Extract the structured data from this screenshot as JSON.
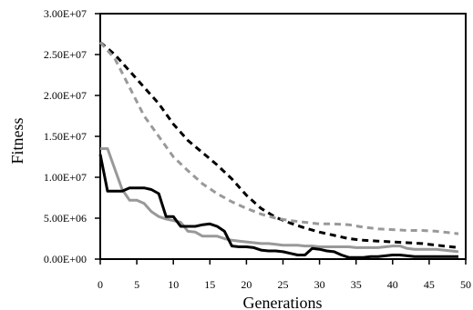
{
  "chart_data": {
    "type": "line",
    "xlabel": "Generations",
    "ylabel": "Fitness",
    "xlim": [
      0,
      50
    ],
    "ylim": [
      0,
      30000000
    ],
    "x_ticks": [
      0,
      5,
      10,
      15,
      20,
      25,
      30,
      35,
      40,
      45,
      50
    ],
    "x_tick_labels": [
      "0",
      "5",
      "10",
      "15",
      "20",
      "25",
      "30",
      "35",
      "40",
      "45",
      "50"
    ],
    "y_ticks": [
      0,
      5000000,
      10000000,
      15000000,
      20000000,
      25000000,
      30000000
    ],
    "y_tick_labels": [
      "0.00E+00",
      "5.00E+06",
      "1.00E+07",
      "1.50E+07",
      "2.00E+07",
      "2.50E+07",
      "3.00E+07"
    ],
    "grid": false,
    "legend": "none",
    "series": [
      {
        "style": "dashed",
        "color": "#000000",
        "x": [
          0,
          2,
          4,
          6,
          8,
          10,
          12,
          14,
          16,
          18,
          20,
          22,
          24,
          26,
          28,
          30,
          32,
          34,
          36,
          38,
          40,
          42,
          44,
          46,
          48,
          49
        ],
        "y": [
          26500000,
          25000000,
          23000000,
          21000000,
          19000000,
          16500000,
          14500000,
          13000000,
          11500000,
          9800000,
          7800000,
          6200000,
          5100000,
          4400000,
          3800000,
          3300000,
          2900000,
          2500000,
          2300000,
          2200000,
          2100000,
          2000000,
          1900000,
          1700000,
          1500000,
          1400000
        ]
      },
      {
        "style": "dashed",
        "color": "#999999",
        "x": [
          0,
          2,
          4,
          6,
          8,
          10,
          12,
          14,
          16,
          18,
          20,
          22,
          24,
          26,
          28,
          30,
          32,
          34,
          36,
          38,
          40,
          42,
          44,
          46,
          48,
          49
        ],
        "y": [
          26500000,
          24500000,
          21000000,
          17500000,
          15000000,
          12500000,
          10800000,
          9200000,
          8000000,
          7000000,
          6200000,
          5500000,
          5000000,
          4700000,
          4500000,
          4300000,
          4300000,
          4200000,
          3900000,
          3700000,
          3600000,
          3500000,
          3500000,
          3400000,
          3200000,
          3100000
        ]
      },
      {
        "style": "solid",
        "color": "#999999",
        "x": [
          0,
          1,
          2,
          3,
          4,
          5,
          6,
          7,
          8,
          9,
          10,
          11,
          12,
          13,
          14,
          15,
          16,
          17,
          18,
          19,
          20,
          21,
          22,
          23,
          24,
          25,
          26,
          27,
          28,
          29,
          30,
          31,
          32,
          33,
          34,
          35,
          36,
          37,
          38,
          39,
          40,
          41,
          42,
          43,
          44,
          45,
          46,
          47,
          48,
          49
        ],
        "y": [
          13500000,
          13500000,
          11000000,
          8500000,
          7200000,
          7200000,
          6800000,
          5800000,
          5200000,
          4900000,
          4700000,
          4500000,
          3400000,
          3300000,
          2800000,
          2800000,
          2800000,
          2500000,
          2300000,
          2200000,
          2100000,
          2000000,
          1900000,
          1900000,
          1800000,
          1700000,
          1700000,
          1700000,
          1600000,
          1600000,
          1500000,
          1500000,
          1500000,
          1500000,
          1500000,
          1400000,
          1400000,
          1400000,
          1400000,
          1500000,
          1600000,
          1600000,
          1300000,
          1200000,
          1200000,
          1200000,
          1200000,
          1100000,
          1000000,
          900000
        ]
      },
      {
        "style": "solid",
        "color": "#000000",
        "x": [
          0,
          1,
          2,
          3,
          4,
          5,
          6,
          7,
          8,
          9,
          10,
          11,
          12,
          13,
          14,
          15,
          16,
          17,
          18,
          19,
          20,
          21,
          22,
          23,
          24,
          25,
          26,
          27,
          28,
          29,
          30,
          31,
          32,
          33,
          34,
          35,
          36,
          37,
          38,
          39,
          40,
          41,
          42,
          43,
          44,
          45,
          46,
          47,
          48,
          49
        ],
        "y": [
          12800000,
          8300000,
          8300000,
          8300000,
          8700000,
          8700000,
          8700000,
          8500000,
          8000000,
          5200000,
          5200000,
          4000000,
          4000000,
          4000000,
          4200000,
          4300000,
          4000000,
          3400000,
          1600000,
          1500000,
          1500000,
          1400000,
          1100000,
          1000000,
          1000000,
          900000,
          700000,
          500000,
          500000,
          1300000,
          1200000,
          1000000,
          900000,
          500000,
          200000,
          200000,
          200000,
          300000,
          300000,
          400000,
          500000,
          500000,
          400000,
          300000,
          300000,
          300000,
          300000,
          300000,
          300000,
          300000
        ]
      }
    ]
  }
}
